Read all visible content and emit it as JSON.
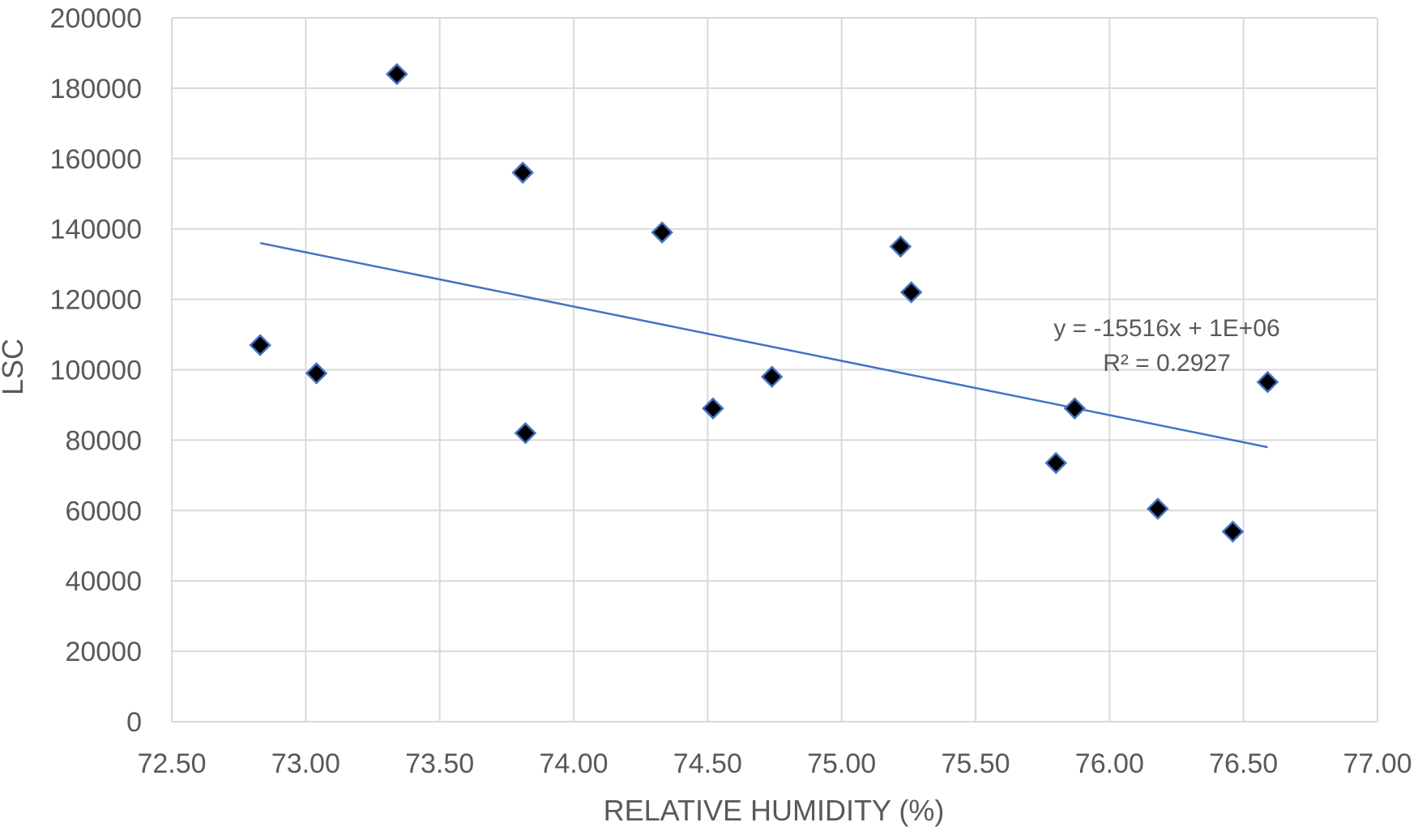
{
  "chart_data": {
    "type": "scatter",
    "title": "",
    "xlabel": "RELATIVE HUMIDITY (%)",
    "ylabel": "LSC",
    "xlim": [
      72.5,
      77.0
    ],
    "ylim": [
      0,
      200000
    ],
    "x_ticks": [
      "72.50",
      "73.00",
      "73.50",
      "74.00",
      "74.50",
      "75.00",
      "75.50",
      "76.00",
      "76.50",
      "77.00"
    ],
    "y_ticks": [
      "0",
      "20000",
      "40000",
      "60000",
      "80000",
      "100000",
      "120000",
      "140000",
      "160000",
      "180000",
      "200000"
    ],
    "grid": true,
    "series": [
      {
        "marker": "diamond",
        "color": "#000000",
        "edge_color": "#4472C4",
        "points": [
          {
            "x": 72.83,
            "y": 107000
          },
          {
            "x": 73.04,
            "y": 99000
          },
          {
            "x": 73.34,
            "y": 184000
          },
          {
            "x": 73.81,
            "y": 156000
          },
          {
            "x": 73.82,
            "y": 82000
          },
          {
            "x": 74.33,
            "y": 139000
          },
          {
            "x": 74.52,
            "y": 89000
          },
          {
            "x": 74.74,
            "y": 98000
          },
          {
            "x": 75.22,
            "y": 135000
          },
          {
            "x": 75.26,
            "y": 122000
          },
          {
            "x": 75.8,
            "y": 73500
          },
          {
            "x": 75.87,
            "y": 89000
          },
          {
            "x": 76.18,
            "y": 60500
          },
          {
            "x": 76.46,
            "y": 54000
          },
          {
            "x": 76.59,
            "y": 96500
          }
        ]
      }
    ],
    "trendline": {
      "type": "linear",
      "color": "#4472C4",
      "x_range": [
        72.83,
        76.59
      ],
      "y_range": [
        136000,
        78000
      ],
      "equation": "y = -15516x + 1E+06",
      "r_squared": "R² = 0.2927"
    }
  }
}
